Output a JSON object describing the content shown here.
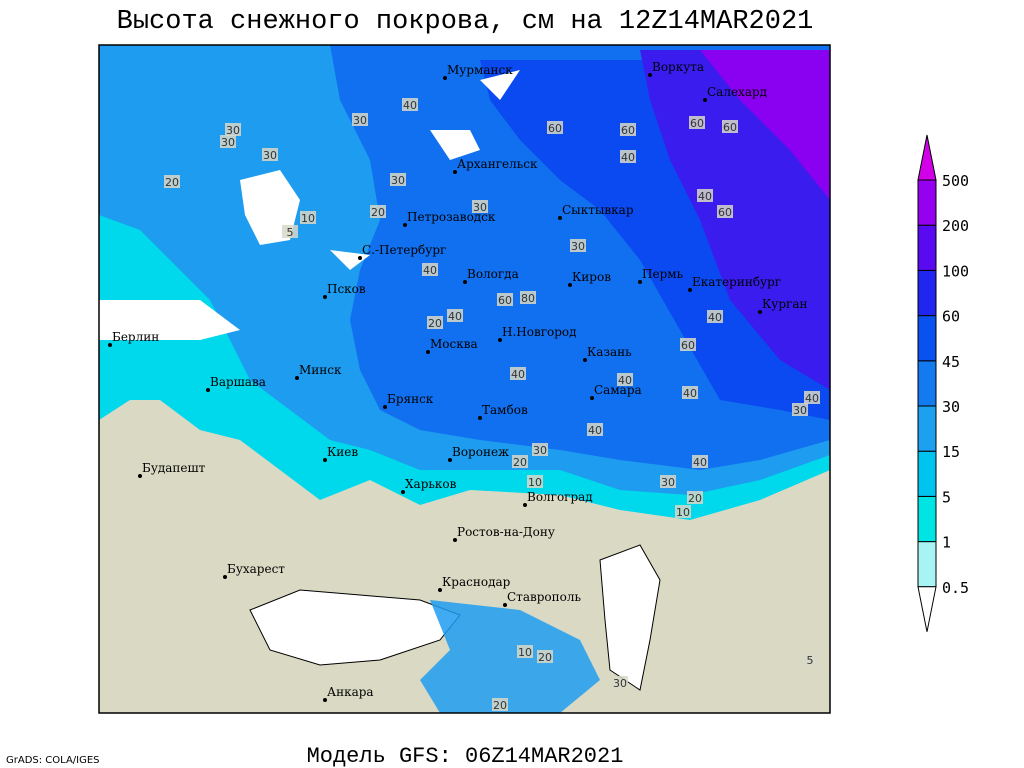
{
  "title": "Высота снежного покрова, см на 12Z14MAR2021",
  "subtitle": "Модель GFS: 06Z14MAR2021",
  "credit": "GrADS: COLA/IGES",
  "colorbar": {
    "levels": [
      0.5,
      1,
      5,
      15,
      30,
      45,
      60,
      100,
      200,
      500
    ],
    "colors": [
      "#ffffff",
      "#a8f4f4",
      "#00e4e4",
      "#00c4f0",
      "#1ea0f0",
      "#147af0",
      "#0a52f0",
      "#2026f0",
      "#5a0af0",
      "#9600f0",
      "#d200e6"
    ]
  },
  "cities": [
    "Мурманск",
    "Воркута",
    "Салехард",
    "Архангельск",
    "Сыктывкар",
    "Петрозаводск",
    "С.-Петербург",
    "Вологда",
    "Киров",
    "Пермь",
    "Екатеринбург",
    "Курган",
    "Псков",
    "Берлин",
    "Н.Новгород",
    "Москва",
    "Казань",
    "Минск",
    "Варшава",
    "Самара",
    "Брянск",
    "Тамбов",
    "Киев",
    "Воронеж",
    "Будапешт",
    "Харьков",
    "Волгоград",
    "Ростов-на-Дону",
    "Бухарест",
    "Краснодар",
    "Ставрополь",
    "Анкара"
  ],
  "contour_labels": [
    30,
    30,
    30,
    20,
    10,
    5,
    20,
    30,
    40,
    30,
    60,
    60,
    40,
    60,
    60,
    30,
    40,
    60,
    30,
    40,
    60,
    80,
    40,
    20,
    40,
    60,
    40,
    40,
    40,
    30,
    40,
    40,
    30,
    20,
    40,
    30,
    20,
    10,
    10,
    20,
    30,
    10,
    5,
    20
  ]
}
